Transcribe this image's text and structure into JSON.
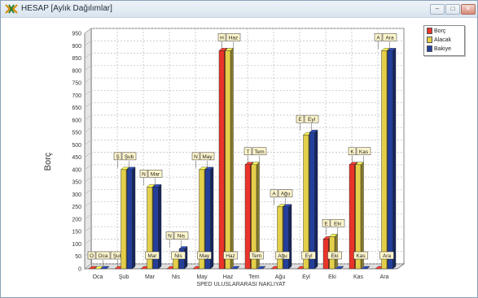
{
  "window": {
    "title": "HESAP  [Aylık Dağılımlar]",
    "controls": {
      "minimize": "–",
      "maximize": "□",
      "close": "✕"
    }
  },
  "legend": [
    {
      "label": "Borç",
      "color": "#e8342a"
    },
    {
      "label": "Alacak",
      "color": "#e3cf4a"
    },
    {
      "label": "Bakiye",
      "color": "#243f9a"
    }
  ],
  "chart_data": {
    "type": "bar",
    "title": "",
    "xlabel": "SPED ULUSLARARASI NAKLIYAT",
    "ylabel": "Borç",
    "ylim": [
      0,
      950
    ],
    "yticks": [
      0,
      50,
      100,
      150,
      200,
      250,
      300,
      350,
      400,
      450,
      500,
      550,
      600,
      650,
      700,
      750,
      800,
      850,
      900,
      950
    ],
    "grid": true,
    "legend_position": "top-right",
    "categories": [
      "Oca",
      "Şub",
      "Mar",
      "Nis",
      "May",
      "Haz",
      "Tem",
      "Ağu",
      "Eyl",
      "Eki",
      "Kas",
      "Ara"
    ],
    "series": [
      {
        "name": "Borç",
        "color": "#e8342a",
        "values": [
          0,
          0,
          0,
          0,
          0,
          880,
          420,
          0,
          0,
          120,
          420,
          0
        ]
      },
      {
        "name": "Alacak",
        "color": "#e3cf4a",
        "values": [
          0,
          400,
          330,
          40,
          400,
          880,
          420,
          250,
          540,
          130,
          420,
          880
        ]
      },
      {
        "name": "Bakiye",
        "color": "#243f9a",
        "values": [
          0,
          400,
          330,
          80,
          400,
          0,
          0,
          250,
          550,
          0,
          0,
          880
        ]
      }
    ],
    "data_labels": [
      {
        "category": "Oca",
        "top": [
          "O",
          "Oca",
          "Şub"
        ]
      },
      {
        "category": "Şub",
        "top": [
          "Ş",
          "Şub"
        ]
      },
      {
        "category": "Mar",
        "top": [
          "N",
          "Mar"
        ],
        "base": "Mar"
      },
      {
        "category": "Nis",
        "top": [
          "N",
          "Nis"
        ],
        "base": "Nis"
      },
      {
        "category": "May",
        "top": [
          "N",
          "May"
        ],
        "base": "May"
      },
      {
        "category": "Haz",
        "top": [
          "H",
          "Haz"
        ],
        "base": "Haz"
      },
      {
        "category": "Tem",
        "top": [
          "T",
          "Tem"
        ],
        "base": "Tem"
      },
      {
        "category": "Ağu",
        "top": [
          "A",
          "Ağu"
        ],
        "base": "Ağu"
      },
      {
        "category": "Eyl",
        "top": [
          "E",
          "Eyl"
        ],
        "base": "Eyl"
      },
      {
        "category": "Eki",
        "top": [
          "E",
          "Eki"
        ],
        "base": "Eki"
      },
      {
        "category": "Kas",
        "top": [
          "K",
          "Kas"
        ],
        "base": "Kas"
      },
      {
        "category": "Ara",
        "top": [
          "A",
          "Ara"
        ],
        "base": "Ara"
      }
    ]
  }
}
